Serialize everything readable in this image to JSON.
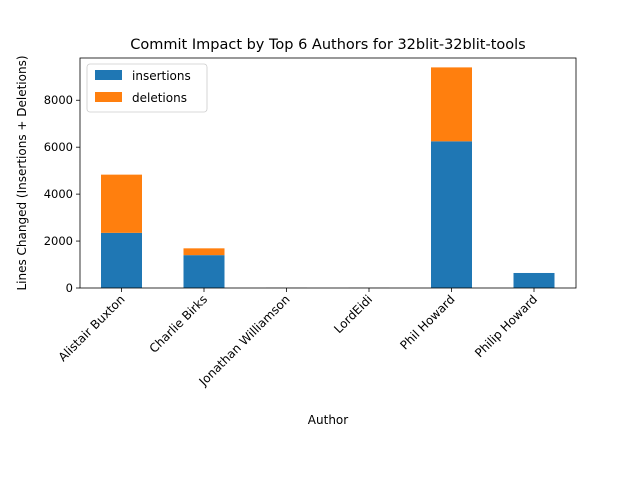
{
  "chart_data": {
    "type": "bar",
    "stacked": true,
    "title": "Commit Impact by Top 6 Authors for 32blit-32blit-tools",
    "xlabel": "Author",
    "ylabel": "Lines Changed (Insertions + Deletions)",
    "categories": [
      "Alistair Buxton",
      "Charlie Birks",
      "Jonathan Williamson",
      "LordEidi",
      "Phil Howard",
      "Philip Howard"
    ],
    "series": [
      {
        "name": "insertions",
        "color": "#1f77b4",
        "values": [
          2350,
          1400,
          5,
          5,
          6250,
          640
        ]
      },
      {
        "name": "deletions",
        "color": "#ff7f0e",
        "values": [
          2480,
          290,
          3,
          3,
          3150,
          0
        ]
      }
    ],
    "ylim": [
      0,
      9800
    ],
    "yticks": [
      0,
      2000,
      4000,
      6000,
      8000
    ],
    "ytick_labels": [
      "0",
      "2000",
      "4000",
      "6000",
      "8000"
    ],
    "grid": false,
    "legend": "top-left"
  }
}
